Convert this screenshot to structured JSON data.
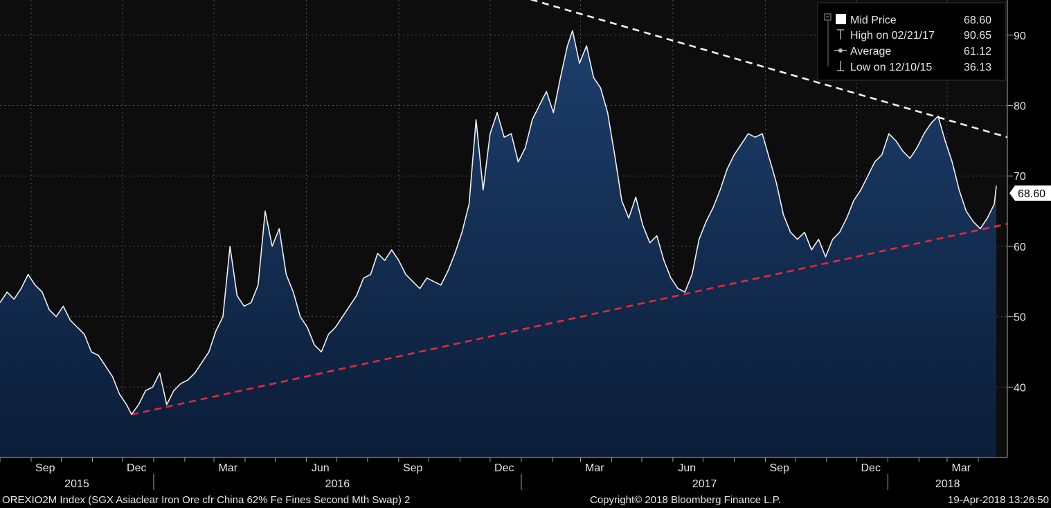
{
  "chart_data": {
    "type": "area",
    "footer": {
      "ticker": "OREXIO2M Index (SGX Asiaclear Iron Ore cfr China 62% Fe Fines Second Mth Swap) 2",
      "copyright": "Copyright© 2018 Bloomberg Finance L.P.",
      "timestamp": "19-Apr-2018 13:26:50"
    },
    "legend": {
      "placement": "top-right",
      "entries": [
        {
          "label": "Mid Price",
          "value": "68.60"
        },
        {
          "label": "High on 02/21/17",
          "value": "90.65"
        },
        {
          "label": "Average",
          "value": "61.12"
        },
        {
          "label": "Low on 12/10/15",
          "value": "36.13"
        }
      ]
    },
    "last_price_label": "68.60",
    "y_axis": {
      "side": "right",
      "ylim": [
        30,
        95
      ],
      "ticks": [
        40,
        50,
        60,
        70,
        80,
        90
      ],
      "grid": true
    },
    "x_axis": {
      "month_ticks": [
        "Sep",
        "Dec",
        "Mar",
        "Jun",
        "Sep",
        "Dec",
        "Mar",
        "Jun",
        "Sep",
        "Dec",
        "Mar"
      ],
      "year_labels": [
        "2015",
        "2016",
        "2017",
        "2018"
      ],
      "xlim": [
        "2015-08-01",
        "2018-04-30"
      ],
      "grid": true
    },
    "trendlines": [
      {
        "name": "",
        "style": "dashed",
        "color": "#f2f2f2",
        "points": [
          [
            "2016-12-19",
            96.0
          ],
          [
            "2018-04-30",
            75.5
          ]
        ]
      },
      {
        "name": "",
        "style": "dashed",
        "color": "#e8283c",
        "points": [
          [
            "2015-12-10",
            36.1
          ],
          [
            "2018-04-30",
            63.2
          ]
        ]
      }
    ],
    "colors": {
      "line": "#f0f0f0",
      "fill_top": "#1c3f6c",
      "fill_bottom": "#0b1d38",
      "grid": "#555555",
      "background": "#000000"
    },
    "series": [
      {
        "name": "Mid Price",
        "points": [
          [
            "2015-08-01",
            52
          ],
          [
            "2015-08-08",
            53.5
          ],
          [
            "2015-08-15",
            52.5
          ],
          [
            "2015-08-22",
            54
          ],
          [
            "2015-08-29",
            56
          ],
          [
            "2015-09-05",
            54.5
          ],
          [
            "2015-09-12",
            53.5
          ],
          [
            "2015-09-19",
            51
          ],
          [
            "2015-09-26",
            50
          ],
          [
            "2015-10-03",
            51.5
          ],
          [
            "2015-10-10",
            49.5
          ],
          [
            "2015-10-17",
            48.5
          ],
          [
            "2015-10-24",
            47.5
          ],
          [
            "2015-10-31",
            45
          ],
          [
            "2015-11-07",
            44.5
          ],
          [
            "2015-11-14",
            43
          ],
          [
            "2015-11-21",
            41.5
          ],
          [
            "2015-11-28",
            39
          ],
          [
            "2015-12-05",
            37.5
          ],
          [
            "2015-12-10",
            36.13
          ],
          [
            "2015-12-17",
            37.5
          ],
          [
            "2015-12-24",
            39.5
          ],
          [
            "2015-12-31",
            40
          ],
          [
            "2016-01-07",
            42
          ],
          [
            "2016-01-14",
            37.5
          ],
          [
            "2016-01-21",
            39.5
          ],
          [
            "2016-01-28",
            40.5
          ],
          [
            "2016-02-04",
            41
          ],
          [
            "2016-02-11",
            42
          ],
          [
            "2016-02-18",
            43.5
          ],
          [
            "2016-02-25",
            45
          ],
          [
            "2016-03-03",
            48
          ],
          [
            "2016-03-10",
            50
          ],
          [
            "2016-03-17",
            60
          ],
          [
            "2016-03-24",
            53
          ],
          [
            "2016-03-31",
            51.5
          ],
          [
            "2016-04-07",
            52
          ],
          [
            "2016-04-14",
            54.5
          ],
          [
            "2016-04-21",
            65
          ],
          [
            "2016-04-28",
            60
          ],
          [
            "2016-05-05",
            62.5
          ],
          [
            "2016-05-12",
            56
          ],
          [
            "2016-05-19",
            53.5
          ],
          [
            "2016-05-26",
            50
          ],
          [
            "2016-06-02",
            48.5
          ],
          [
            "2016-06-09",
            46
          ],
          [
            "2016-06-16",
            45
          ],
          [
            "2016-06-23",
            47.5
          ],
          [
            "2016-06-30",
            48.5
          ],
          [
            "2016-07-07",
            50
          ],
          [
            "2016-07-14",
            51.5
          ],
          [
            "2016-07-21",
            53
          ],
          [
            "2016-07-28",
            55.5
          ],
          [
            "2016-08-04",
            56
          ],
          [
            "2016-08-11",
            59
          ],
          [
            "2016-08-18",
            58
          ],
          [
            "2016-08-25",
            59.5
          ],
          [
            "2016-09-01",
            58
          ],
          [
            "2016-09-08",
            56
          ],
          [
            "2016-09-15",
            55
          ],
          [
            "2016-09-22",
            54
          ],
          [
            "2016-09-29",
            55.5
          ],
          [
            "2016-10-06",
            55
          ],
          [
            "2016-10-13",
            54.5
          ],
          [
            "2016-10-20",
            56.5
          ],
          [
            "2016-10-27",
            59
          ],
          [
            "2016-11-03",
            62
          ],
          [
            "2016-11-10",
            66
          ],
          [
            "2016-11-17",
            78
          ],
          [
            "2016-11-24",
            68
          ],
          [
            "2016-12-01",
            76
          ],
          [
            "2016-12-08",
            79
          ],
          [
            "2016-12-15",
            75.5
          ],
          [
            "2016-12-22",
            76
          ],
          [
            "2016-12-29",
            72
          ],
          [
            "2017-01-05",
            74
          ],
          [
            "2017-01-12",
            78
          ],
          [
            "2017-01-19",
            80
          ],
          [
            "2017-01-26",
            82
          ],
          [
            "2017-02-02",
            79
          ],
          [
            "2017-02-09",
            84
          ],
          [
            "2017-02-16",
            88.5
          ],
          [
            "2017-02-21",
            90.65
          ],
          [
            "2017-02-28",
            86
          ],
          [
            "2017-03-07",
            88.5
          ],
          [
            "2017-03-14",
            84
          ],
          [
            "2017-03-21",
            82.5
          ],
          [
            "2017-03-28",
            79
          ],
          [
            "2017-04-04",
            73
          ],
          [
            "2017-04-11",
            66.5
          ],
          [
            "2017-04-18",
            64
          ],
          [
            "2017-04-25",
            67
          ],
          [
            "2017-05-02",
            63
          ],
          [
            "2017-05-09",
            60.5
          ],
          [
            "2017-05-16",
            61.5
          ],
          [
            "2017-05-23",
            58
          ],
          [
            "2017-05-30",
            55.5
          ],
          [
            "2017-06-06",
            54
          ],
          [
            "2017-06-13",
            53.5
          ],
          [
            "2017-06-20",
            56
          ],
          [
            "2017-06-27",
            61
          ],
          [
            "2017-07-04",
            63.5
          ],
          [
            "2017-07-11",
            65.5
          ],
          [
            "2017-07-18",
            68
          ],
          [
            "2017-07-25",
            71
          ],
          [
            "2017-08-01",
            73
          ],
          [
            "2017-08-08",
            74.5
          ],
          [
            "2017-08-15",
            76
          ],
          [
            "2017-08-22",
            75.5
          ],
          [
            "2017-08-29",
            76
          ],
          [
            "2017-09-05",
            72.5
          ],
          [
            "2017-09-12",
            69
          ],
          [
            "2017-09-19",
            64.5
          ],
          [
            "2017-09-26",
            62
          ],
          [
            "2017-10-03",
            61
          ],
          [
            "2017-10-10",
            62
          ],
          [
            "2017-10-17",
            59.5
          ],
          [
            "2017-10-24",
            61
          ],
          [
            "2017-10-31",
            58.5
          ],
          [
            "2017-11-07",
            61
          ],
          [
            "2017-11-14",
            62
          ],
          [
            "2017-11-21",
            64
          ],
          [
            "2017-11-28",
            66.5
          ],
          [
            "2017-12-05",
            68
          ],
          [
            "2017-12-12",
            70
          ],
          [
            "2017-12-19",
            72
          ],
          [
            "2017-12-26",
            73
          ],
          [
            "2018-01-02",
            76
          ],
          [
            "2018-01-09",
            75
          ],
          [
            "2018-01-16",
            73.5
          ],
          [
            "2018-01-23",
            72.5
          ],
          [
            "2018-01-30",
            74
          ],
          [
            "2018-02-06",
            76
          ],
          [
            "2018-02-13",
            77.5
          ],
          [
            "2018-02-20",
            78.5
          ],
          [
            "2018-02-27",
            75
          ],
          [
            "2018-03-06",
            72
          ],
          [
            "2018-03-13",
            68
          ],
          [
            "2018-03-20",
            65
          ],
          [
            "2018-03-27",
            63.5
          ],
          [
            "2018-04-03",
            62.5
          ],
          [
            "2018-04-10",
            64
          ],
          [
            "2018-04-17",
            66
          ],
          [
            "2018-04-19",
            68.6
          ]
        ]
      }
    ]
  }
}
